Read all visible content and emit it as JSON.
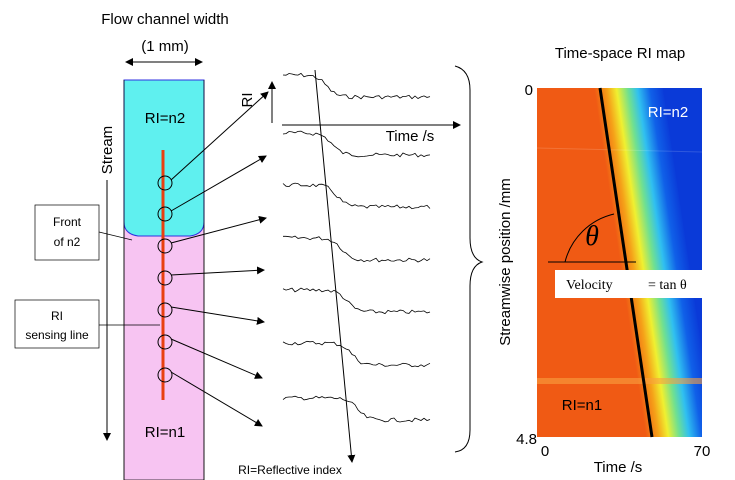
{
  "left": {
    "title": "Flow channel width",
    "width_label": "(1 mm)",
    "upper_fluid": "RI=n2",
    "lower_fluid": "RI=n1",
    "stream_label": "Stream",
    "front_label": [
      "Front",
      "of n2"
    ],
    "sensing_label": [
      "RI",
      "sensing line"
    ],
    "footnote": "RI=Reflective index"
  },
  "traces": {
    "y_label": "RI",
    "x_label": "Time /s"
  },
  "map": {
    "title": "Time-space RI map",
    "y_label": "Streamwise position /mm",
    "x_label": "Time /s",
    "y_top": "0",
    "y_bottom": "4.8",
    "x_left": "0",
    "x_right": "70",
    "upper_fluid": "RI=n2",
    "lower_fluid": "RI=n1",
    "angle": "θ",
    "velocity": "Velocity",
    "formula": "= tan θ"
  }
}
